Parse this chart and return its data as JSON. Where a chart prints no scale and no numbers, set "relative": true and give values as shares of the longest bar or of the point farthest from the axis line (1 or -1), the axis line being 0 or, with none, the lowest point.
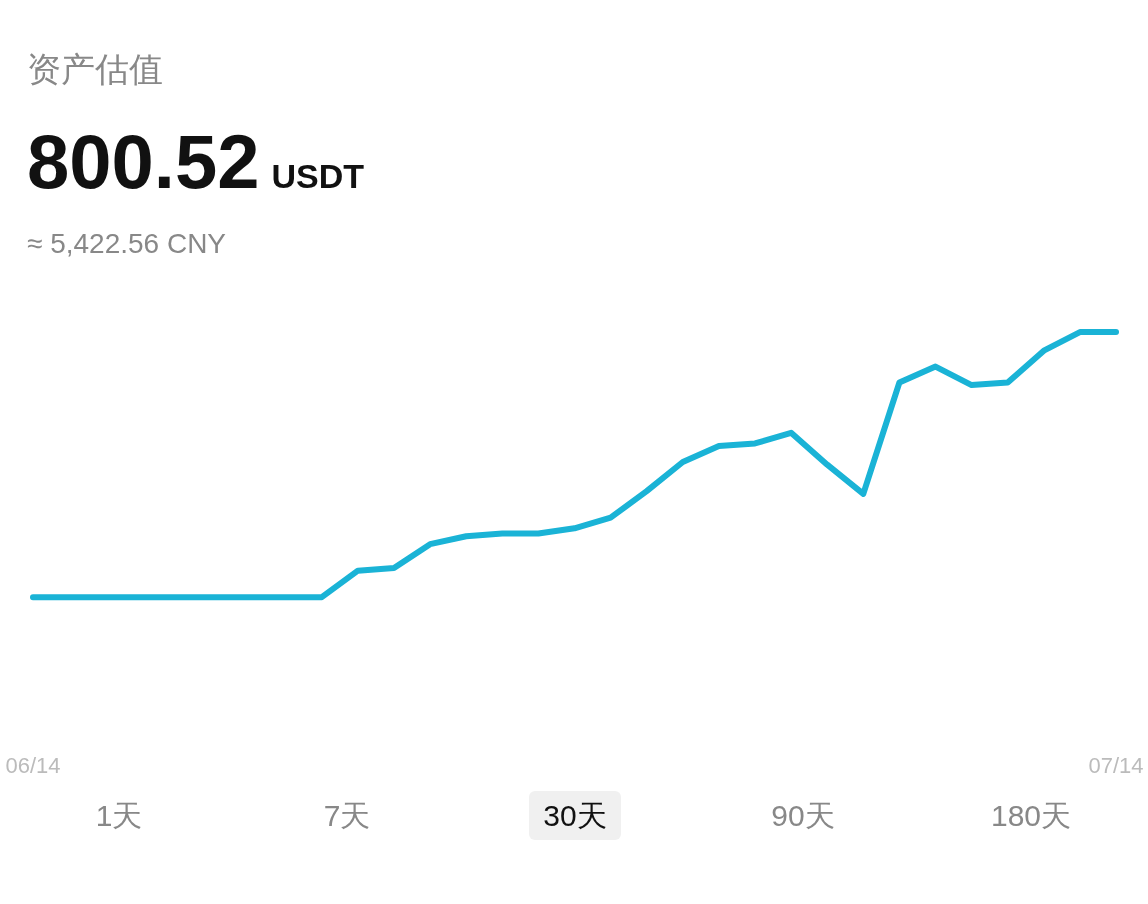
{
  "chart_data": {
    "type": "line",
    "relative": true,
    "title": "资产估值",
    "subtitle": "800.52",
    "annotations": [
      "USDT",
      "≈ 5,422.56 CNY",
      "1天",
      "7天",
      "30天",
      "90天",
      "180天"
    ],
    "categories": [
      "06/14",
      null,
      null,
      null,
      null,
      null,
      null,
      null,
      null,
      null,
      null,
      null,
      null,
      null,
      null,
      null,
      null,
      null,
      null,
      null,
      null,
      null,
      null,
      null,
      null,
      null,
      null,
      null,
      null,
      null,
      "07/14"
    ],
    "series": [
      {
        "color": "#1ab3d6",
        "values": [
          0,
          0,
          0,
          0,
          0,
          0,
          0,
          0,
          0,
          0.1,
          0.11,
          0.2,
          0.23,
          0.24,
          0.24,
          0.26,
          0.3,
          0.4,
          0.51,
          0.57,
          0.58,
          0.62,
          0.5,
          0.39,
          0.81,
          0.87,
          0.8,
          0.81,
          0.93,
          1,
          1
        ]
      }
    ],
    "grid": false,
    "marker": "none",
    "line_style": "solid"
  }
}
